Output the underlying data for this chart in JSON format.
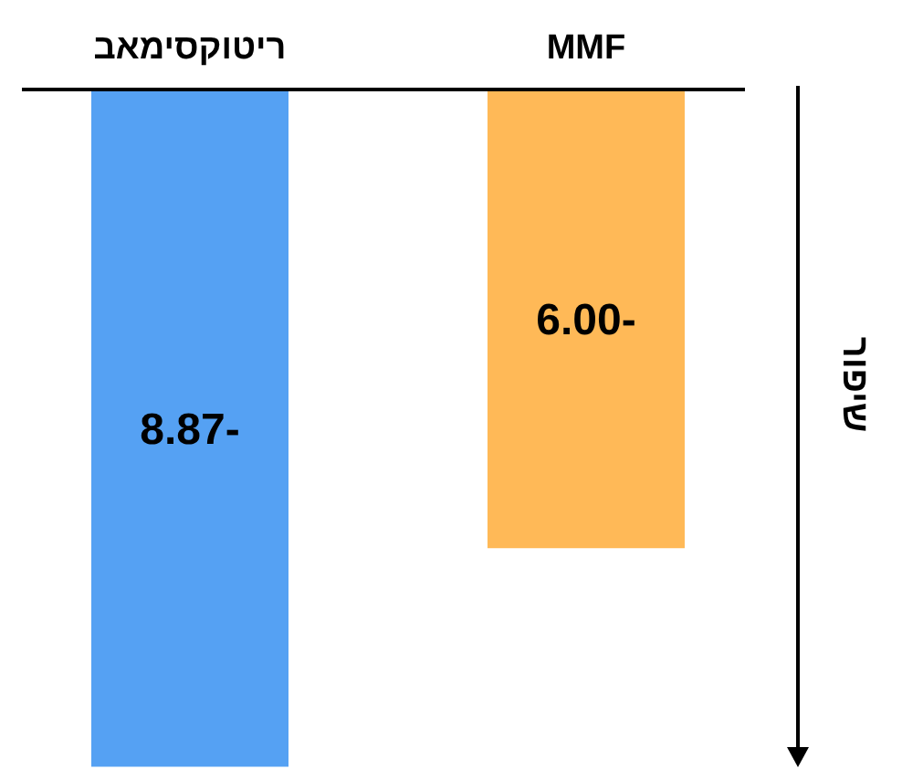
{
  "chart_data": {
    "type": "bar",
    "categories": [
      "ריטוקסימאב",
      "MMF"
    ],
    "values": [
      -8.87,
      -6.0
    ],
    "colors": [
      "#55a1f3",
      "#ffb957"
    ],
    "value_labels": [
      "-8.87",
      "-6.00"
    ],
    "ylabel": "שיפור",
    "ylim": [
      -8.9,
      0
    ],
    "tick_labels": "x"
  }
}
